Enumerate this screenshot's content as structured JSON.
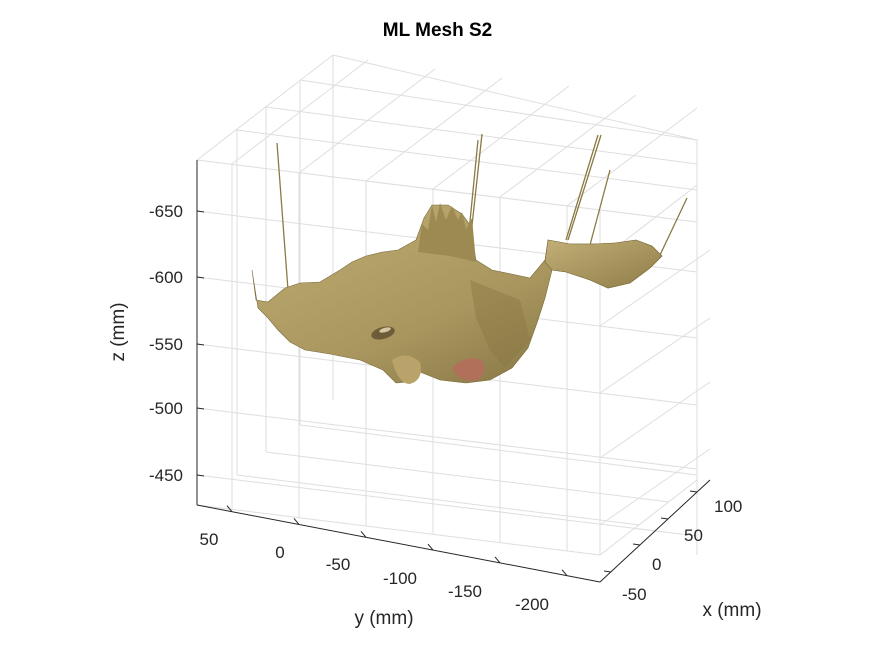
{
  "chart_data": {
    "type": "surface",
    "title": "ML Mesh S2",
    "xlabel": "x (mm)",
    "ylabel": "y (mm)",
    "zlabel": "z (mm)",
    "x_ticks": [
      "-50",
      "0",
      "50",
      "100"
    ],
    "y_ticks": [
      "50",
      "0",
      "-50",
      "-100",
      "-150",
      "-200"
    ],
    "z_ticks": [
      "-650",
      "-600",
      "-550",
      "-500",
      "-450"
    ],
    "xlim": [
      -75,
      125
    ],
    "ylim": [
      -225,
      75
    ],
    "zlim": [
      -475,
      -675
    ],
    "grid": true,
    "surface_color": "#a8965e",
    "surface_shadow": "#6e5e33",
    "lip_color": "#b0705a"
  }
}
